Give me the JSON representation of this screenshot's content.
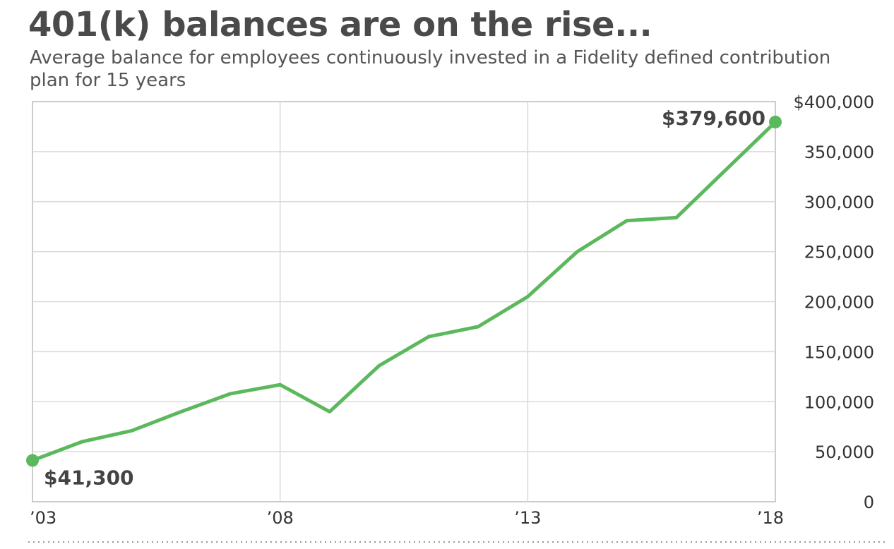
{
  "colors": {
    "line": "#5cb85c",
    "grid": "#d9d9d9",
    "axis": "#bbbbbb",
    "text": "#4a4a4a"
  },
  "chart_data": {
    "type": "line",
    "title": "401(k) balances are on the rise...",
    "subtitle": "Average balance for employees continuously invested in a Fidelity defined contribution plan for 15 years",
    "x": [
      2003,
      2004,
      2005,
      2006,
      2007,
      2008,
      2009,
      2010,
      2011,
      2012,
      2013,
      2014,
      2015,
      2016,
      2018
    ],
    "values": [
      41300,
      60000,
      71000,
      90000,
      108000,
      117000,
      90000,
      136000,
      165000,
      175000,
      205000,
      250000,
      281000,
      284000,
      379600
    ],
    "ylim": [
      0,
      400000
    ],
    "xlim": [
      2003,
      2018
    ],
    "y_ticks": [
      {
        "value": 0,
        "label": "0"
      },
      {
        "value": 50000,
        "label": "50,000"
      },
      {
        "value": 100000,
        "label": "100,000"
      },
      {
        "value": 150000,
        "label": "150,000"
      },
      {
        "value": 200000,
        "label": "200,000"
      },
      {
        "value": 250000,
        "label": "250,000"
      },
      {
        "value": 300000,
        "label": "300,000"
      },
      {
        "value": 350000,
        "label": "350,000"
      },
      {
        "value": 400000,
        "label": "$400,000"
      }
    ],
    "x_ticks": [
      {
        "value": 2003,
        "label": "’03"
      },
      {
        "value": 2008,
        "label": "’08"
      },
      {
        "value": 2013,
        "label": "’13"
      },
      {
        "value": 2018,
        "label": "’18"
      }
    ],
    "annotations": [
      {
        "x": 2003,
        "y": 41300,
        "label": "$41,300"
      },
      {
        "x": 2018,
        "y": 379600,
        "label": "$379,600"
      }
    ],
    "grid": true,
    "y_axis_side": "right",
    "legend": "none"
  }
}
